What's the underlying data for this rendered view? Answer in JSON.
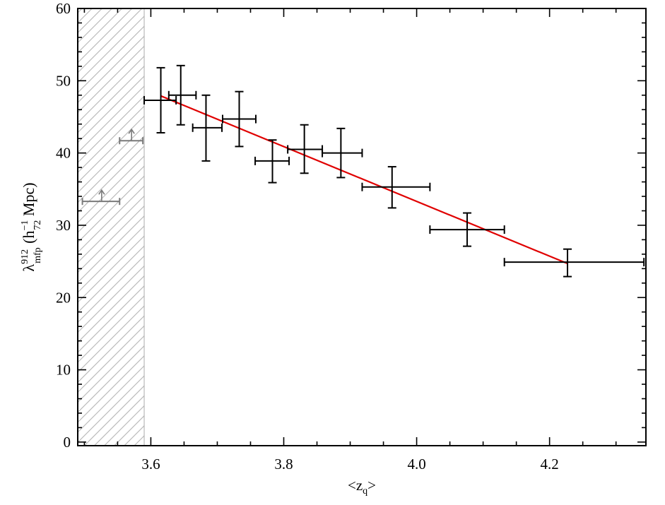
{
  "chart_data": {
    "type": "scatter",
    "xlabel_text": "<z",
    "xlabel_sub": "q",
    "xlabel_close": ">",
    "ylabel_main": "λ",
    "ylabel_sup": "912",
    "ylabel_sub": "mfp",
    "ylabel_paren_open": " (h",
    "ylabel_unit_sup": "−1",
    "ylabel_unit_sub": "72",
    "ylabel_unit_rest": " Mpc)",
    "xlim": [
      3.49,
      4.345
    ],
    "ylim": [
      -0.5,
      60
    ],
    "x_ticks": [
      {
        "value": 3.6,
        "label": "3.6"
      },
      {
        "value": 3.8,
        "label": "3.8"
      },
      {
        "value": 4.0,
        "label": "4.0"
      },
      {
        "value": 4.2,
        "label": "4.2"
      }
    ],
    "y_ticks": [
      {
        "value": 0,
        "label": "0"
      },
      {
        "value": 10,
        "label": "10"
      },
      {
        "value": 20,
        "label": "20"
      },
      {
        "value": 30,
        "label": "30"
      },
      {
        "value": 40,
        "label": "40"
      },
      {
        "value": 50,
        "label": "50"
      },
      {
        "value": 60,
        "label": "60"
      }
    ],
    "excluded_region": {
      "x_from": 3.49,
      "x_to": 3.59,
      "color": "#aaaaaa"
    },
    "measurements": {
      "color": "#000000",
      "points": [
        {
          "x": 3.615,
          "y": 47.3,
          "xlo": 3.59,
          "xhi": 3.638,
          "ylo": 42.8,
          "yhi": 51.8
        },
        {
          "x": 3.645,
          "y": 48.0,
          "xlo": 3.627,
          "xhi": 3.668,
          "ylo": 43.9,
          "yhi": 52.1
        },
        {
          "x": 3.683,
          "y": 43.5,
          "xlo": 3.663,
          "xhi": 3.707,
          "ylo": 38.9,
          "yhi": 48.0
        },
        {
          "x": 3.733,
          "y": 44.7,
          "xlo": 3.708,
          "xhi": 3.758,
          "ylo": 40.9,
          "yhi": 48.5
        },
        {
          "x": 3.783,
          "y": 38.9,
          "xlo": 3.757,
          "xhi": 3.808,
          "ylo": 35.9,
          "yhi": 41.8
        },
        {
          "x": 3.831,
          "y": 40.5,
          "xlo": 3.806,
          "xhi": 3.858,
          "ylo": 37.2,
          "yhi": 43.9
        },
        {
          "x": 3.886,
          "y": 40.0,
          "xlo": 3.858,
          "xhi": 3.918,
          "ylo": 36.6,
          "yhi": 43.4
        },
        {
          "x": 3.963,
          "y": 35.3,
          "xlo": 3.918,
          "xhi": 4.02,
          "ylo": 32.4,
          "yhi": 38.1
        },
        {
          "x": 4.076,
          "y": 29.4,
          "xlo": 4.02,
          "xhi": 4.132,
          "ylo": 27.1,
          "yhi": 31.7
        },
        {
          "x": 4.227,
          "y": 24.9,
          "xlo": 4.132,
          "xhi": 4.342,
          "ylo": 22.9,
          "yhi": 26.7
        }
      ]
    },
    "lower_limits": {
      "color": "#7a7a7a",
      "points": [
        {
          "x": 3.526,
          "y": 33.3,
          "xlo": 3.497,
          "xhi": 3.553
        },
        {
          "x": 3.571,
          "y": 41.7,
          "xlo": 3.553,
          "xhi": 3.588
        }
      ]
    },
    "fit_line": {
      "color": "#e00000",
      "x": [
        3.615,
        4.227
      ],
      "y": [
        47.9,
        24.7
      ]
    }
  }
}
